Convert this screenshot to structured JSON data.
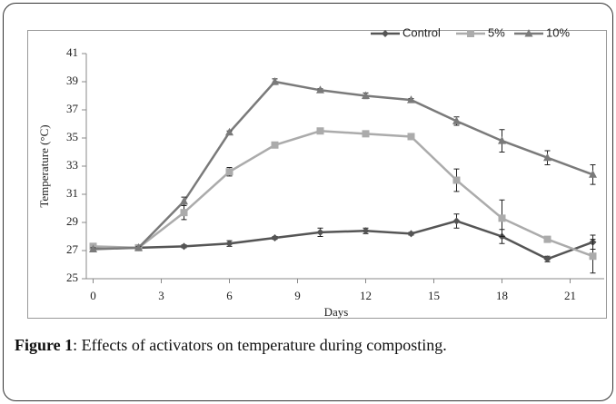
{
  "chart_data": {
    "type": "line",
    "ylabel": "Temperature (°C)",
    "xlabel": "Days",
    "x": [
      0,
      2,
      4,
      6,
      8,
      10,
      12,
      14,
      16,
      18,
      20,
      22
    ],
    "series": [
      {
        "name": "Control",
        "color": "#555555",
        "marker": "diamond",
        "values": [
          27.2,
          27.2,
          27.3,
          27.5,
          27.9,
          28.3,
          28.4,
          28.2,
          29.1,
          28.0,
          26.4,
          27.6
        ],
        "errors": [
          0.1,
          0.1,
          0.1,
          0.2,
          0.1,
          0.3,
          0.2,
          0.1,
          0.5,
          0.5,
          0.2,
          0.5
        ]
      },
      {
        "name": "5%",
        "color": "#ababab",
        "marker": "square",
        "values": [
          27.3,
          27.2,
          29.7,
          32.6,
          34.5,
          35.5,
          35.3,
          35.1,
          32.0,
          29.3,
          27.8,
          26.6
        ],
        "errors": [
          0.1,
          0.1,
          0.5,
          0.3,
          0.1,
          0.2,
          0.1,
          0.1,
          0.8,
          1.3,
          0.2,
          1.2
        ]
      },
      {
        "name": "10%",
        "color": "#7a7a7a",
        "marker": "triangle",
        "values": [
          27.1,
          27.2,
          30.5,
          35.4,
          39.0,
          38.4,
          38.0,
          37.7,
          36.2,
          34.8,
          33.6,
          32.4
        ],
        "errors": [
          0.1,
          0.1,
          0.3,
          0.1,
          0.2,
          0.1,
          0.2,
          0.1,
          0.3,
          0.8,
          0.5,
          0.7
        ]
      }
    ],
    "xlim": [
      -0.3,
      22.3
    ],
    "xticks": [
      0,
      3,
      6,
      9,
      12,
      15,
      18,
      21
    ],
    "ylim": [
      25,
      41
    ],
    "yticks": [
      25,
      27,
      29,
      31,
      33,
      35,
      37,
      39,
      41
    ],
    "legend": "top-right",
    "grid": false
  },
  "caption": {
    "label": "Figure 1",
    "text": ": Effects of activators on temperature during composting."
  }
}
